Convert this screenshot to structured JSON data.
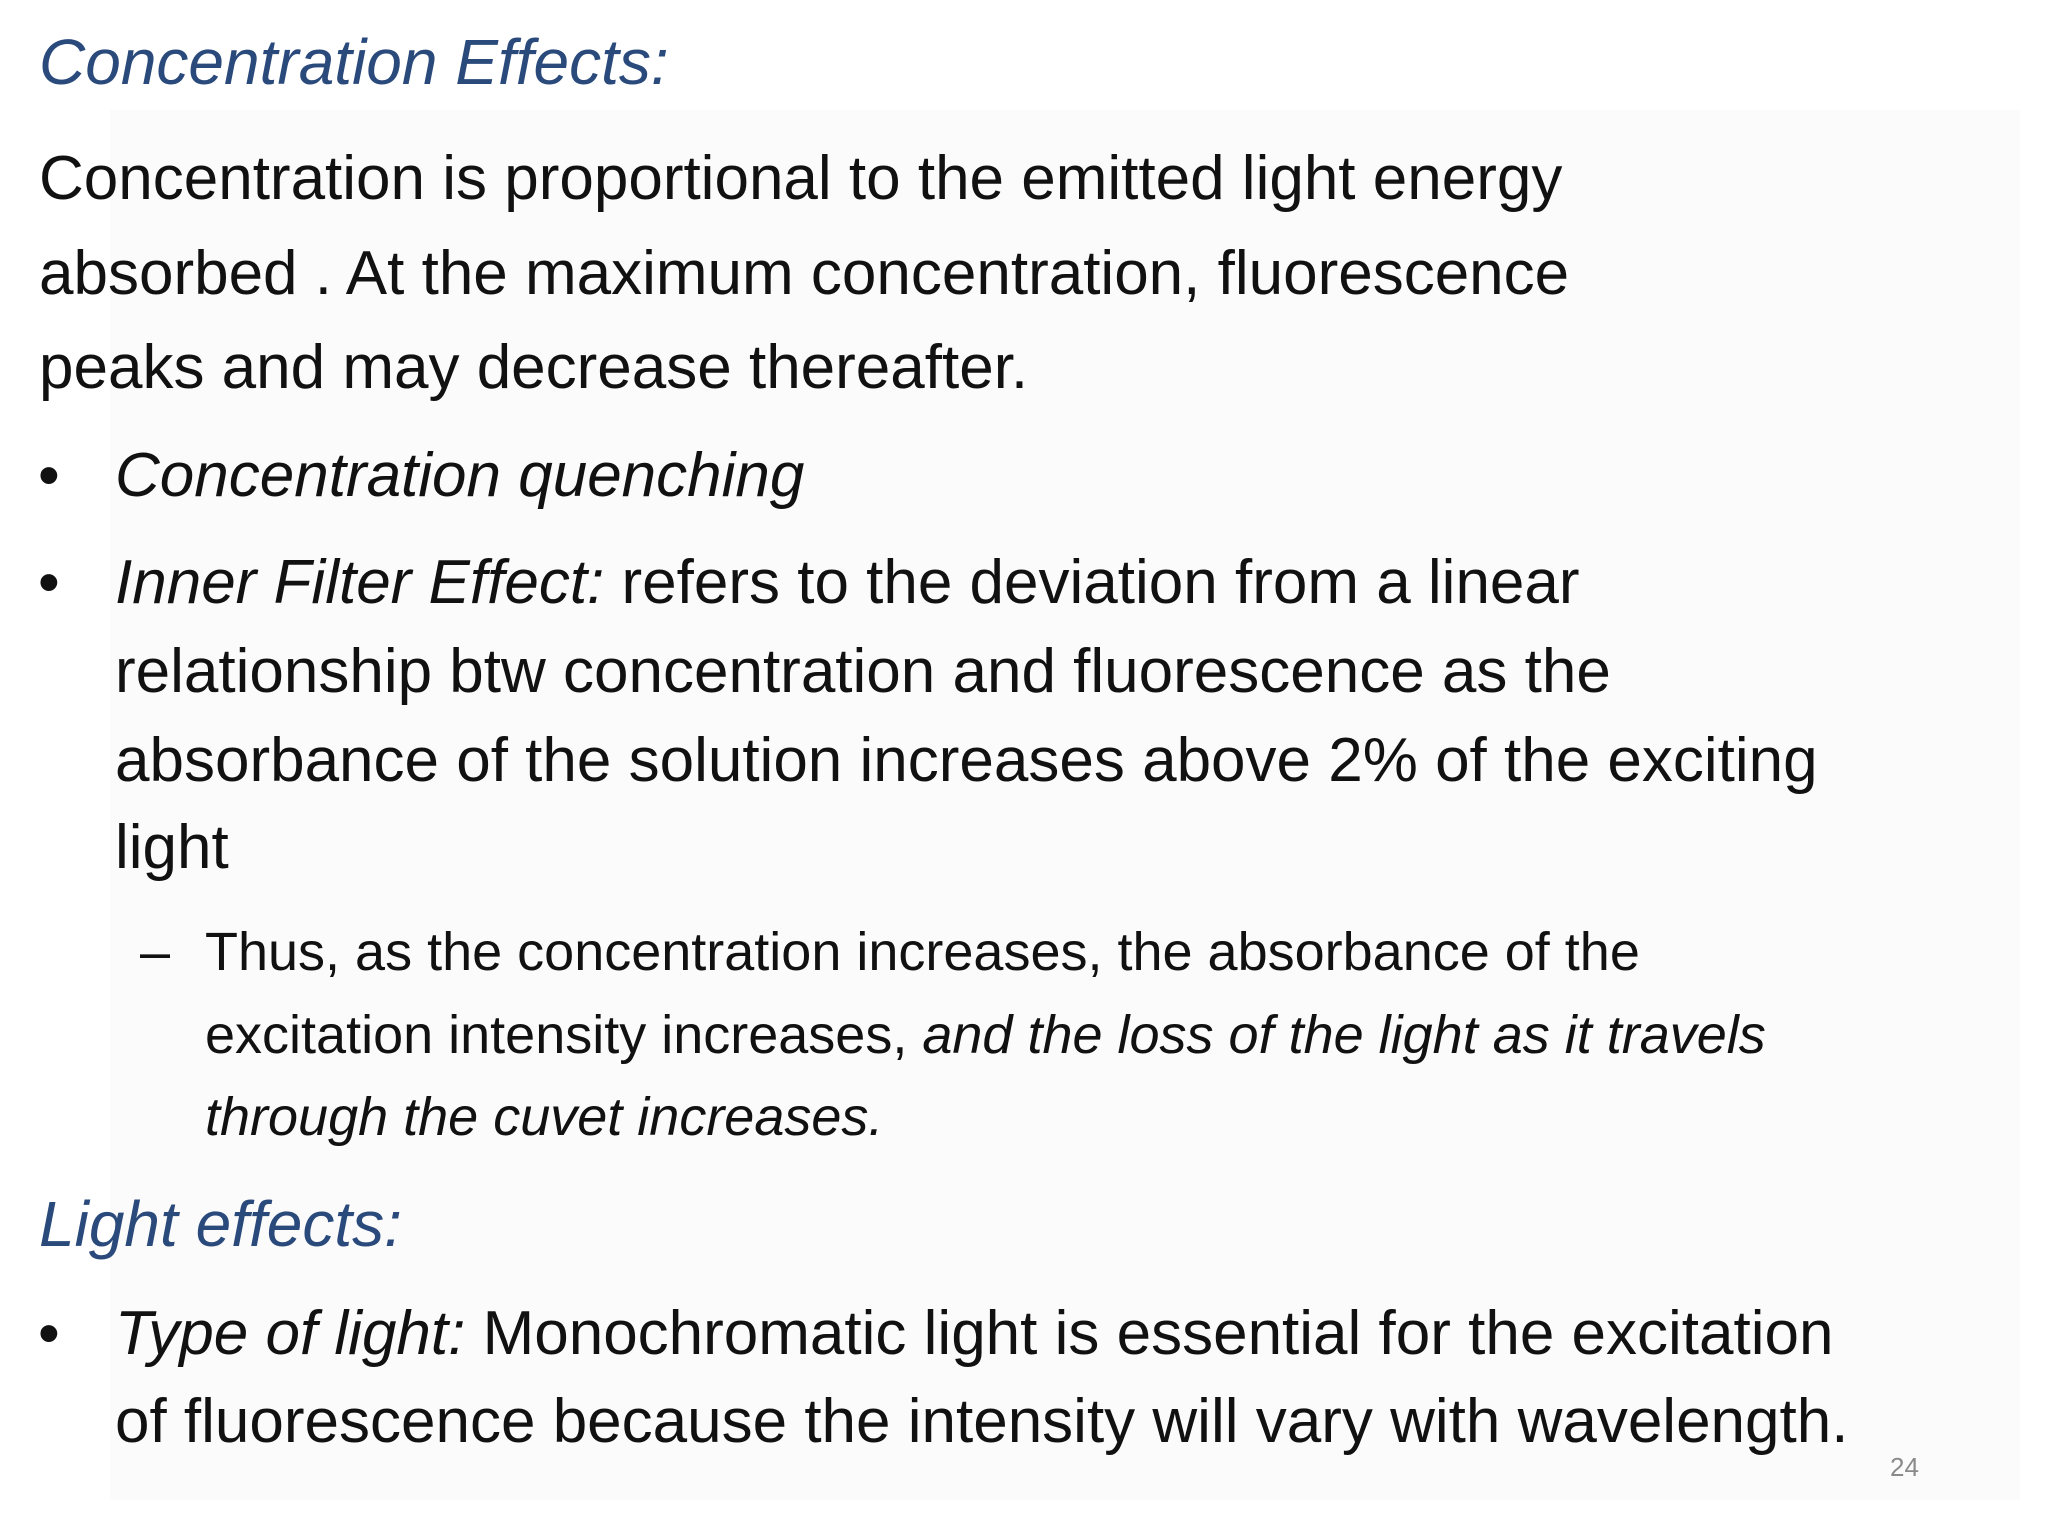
{
  "heading1": "Concentration Effects:",
  "paragraph": [
    [
      {
        "text": "Concentration is proportional to the emitted light energy",
        "italic": false
      }
    ],
    [
      {
        "text": "absorbed . At the maximum concentration, fluorescence",
        "italic": false
      }
    ],
    [
      {
        "text": "peaks and may decrease thereafter.",
        "italic": false
      }
    ]
  ],
  "bullets": [
    {
      "lines": [
        [
          {
            "text": "Concentration quenching",
            "italic": true
          }
        ]
      ]
    },
    {
      "lines": [
        [
          {
            "text": "Inner Filter Effect:",
            "italic": true
          },
          {
            "text": " refers to the deviation from a linear",
            "italic": false
          }
        ],
        [
          {
            "text": "relationship btw concentration and fluorescence as the",
            "italic": false
          }
        ],
        [
          {
            "text": "absorbance of the solution increases above 2% of the exciting",
            "italic": false
          }
        ],
        [
          {
            "text": "light",
            "italic": false
          }
        ]
      ],
      "sub": [
        [
          {
            "text": "Thus, as the concentration increases, the absorbance of the",
            "italic": false
          }
        ],
        [
          {
            "text": "excitation intensity increases,",
            "italic": false
          },
          {
            "text": " and the loss of the light as it travels",
            "italic": true
          }
        ],
        [
          {
            "text": "through the cuvet increases.",
            "italic": true
          }
        ]
      ]
    }
  ],
  "heading2": "Light effects:",
  "bullets2": [
    {
      "lines": [
        [
          {
            "text": "Type of light:",
            "italic": true
          },
          {
            "text": " Monochromatic light is essential for the excitation",
            "italic": false
          }
        ],
        [
          {
            "text": "of fluorescence because the intensity will vary with wavelength.",
            "italic": false
          }
        ]
      ]
    }
  ],
  "page_number": "24"
}
